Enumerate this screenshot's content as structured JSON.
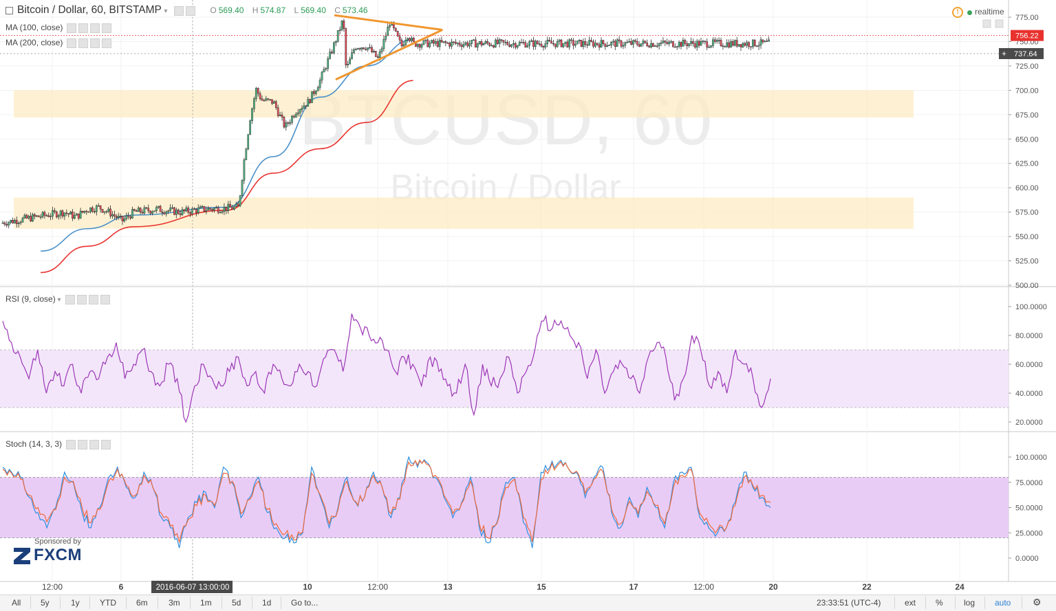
{
  "header": {
    "title": "Bitcoin / Dollar, 60, BITSTAMP",
    "ohlc": [
      {
        "label": "O",
        "value": "569.40"
      },
      {
        "label": "H",
        "value": "574.87"
      },
      {
        "label": "L",
        "value": "569.40"
      },
      {
        "label": "C",
        "value": "573.46"
      }
    ],
    "ma100": "MA (100, close)",
    "ma200": "MA (200, close)",
    "realtime": "realtime"
  },
  "watermark": {
    "symbol": "BTCUSD, 60",
    "name": "Bitcoin / Dollar"
  },
  "indicators": {
    "rsi_title": "RSI (9, close)",
    "stoch_title": "Stoch (14, 3, 3)"
  },
  "sponsor": {
    "label": "Sponsored by",
    "brand": "FXCM"
  },
  "bottombar": {
    "ranges": [
      "All",
      "5y",
      "1y",
      "YTD",
      "6m",
      "3m",
      "1m",
      "5d",
      "1d",
      "Go to..."
    ],
    "clock": "23:33:51 (UTC-4)",
    "right": [
      "ext",
      "%",
      "log",
      "auto"
    ]
  },
  "colors": {
    "up": "#53b987",
    "down": "#eb4d5c",
    "ma100": "#4a90c8",
    "ma200": "#e8322e",
    "triangle": "#f0962e",
    "zone": "#fdecc4",
    "rsi": "#9b35b6",
    "stoch_k": "#2f8fe0",
    "stoch_d": "#ef6a3a"
  },
  "chart_data": [
    {
      "type": "candlestick",
      "title": "Bitcoin / Dollar, 60, BITSTAMP",
      "ylim": [
        500,
        785
      ],
      "yticks": [
        "500.00",
        "525.00",
        "550.00",
        "575.00",
        "600.00",
        "625.00",
        "650.00",
        "675.00",
        "700.00",
        "725.00",
        "750.00",
        "775.00"
      ],
      "price_labels": [
        "756.22",
        "737.64"
      ],
      "xticks": [
        "12:00",
        "6",
        "2016-06-07 13:00:00",
        "10",
        "12:00",
        "13",
        "15",
        "17",
        "12:00",
        "20",
        "22",
        "24"
      ],
      "price_path": [
        [
          "06-04 12:00",
          564
        ],
        [
          "06-05",
          575
        ],
        [
          "06-05 12:00",
          570
        ],
        [
          "06-06",
          578
        ],
        [
          "06-06 12:00",
          580
        ],
        [
          "06-07",
          574
        ],
        [
          "06-07 12:00",
          566
        ],
        [
          "06-08",
          575
        ],
        [
          "06-09",
          578
        ],
        [
          "06-10",
          575
        ],
        [
          "06-11",
          578
        ],
        [
          "06-12",
          579
        ],
        [
          "06-12 12:00",
          580
        ],
        [
          "06-12 18:00",
          630
        ],
        [
          "06-13",
          672
        ],
        [
          "06-13 06:00",
          701
        ],
        [
          "06-13 12:00",
          690
        ],
        [
          "06-14",
          688
        ],
        [
          "06-14 12:00",
          662
        ],
        [
          "06-15",
          680
        ],
        [
          "06-15 12:00",
          688
        ],
        [
          "06-16",
          710
        ],
        [
          "06-16 12:00",
          740
        ],
        [
          "06-17",
          773
        ],
        [
          "06-17 03:00",
          720
        ],
        [
          "06-17 12:00",
          745
        ],
        [
          "06-18",
          745
        ],
        [
          "06-18 12:00",
          732
        ],
        [
          "06-19",
          770
        ],
        [
          "06-19 12:00",
          745
        ],
        [
          "06-19 18:00",
          758
        ],
        [
          "06-20",
          748
        ]
      ],
      "ma100": [
        [
          "06-04",
          535
        ],
        [
          "06-06",
          558
        ],
        [
          "06-08",
          572
        ],
        [
          "06-12",
          580
        ],
        [
          "06-14",
          632
        ],
        [
          "06-16",
          693
        ],
        [
          "06-18",
          725
        ],
        [
          "06-20",
          752
        ]
      ],
      "ma200": [
        [
          "06-04",
          513
        ],
        [
          "06-06",
          540
        ],
        [
          "06-08",
          560
        ],
        [
          "06-12",
          577
        ],
        [
          "06-14",
          615
        ],
        [
          "06-16",
          640
        ],
        [
          "06-18",
          667
        ],
        [
          "06-20",
          710
        ]
      ],
      "zones": [
        {
          "from": 558,
          "to": 590
        },
        {
          "from": 672,
          "to": 700
        }
      ],
      "triangle": {
        "upper": [
          [
            "06-17",
            777
          ],
          [
            "06-20 09:00",
            762
          ]
        ],
        "lower": [
          [
            "06-16 09:00",
            711
          ],
          [
            "06-20 09:00",
            762
          ]
        ]
      }
    },
    {
      "type": "line",
      "title": "RSI (9, close)",
      "ylim": [
        10,
        105
      ],
      "yticks": [
        "20.0000",
        "40.0000",
        "60.0000",
        "80.0000",
        "100.0000"
      ],
      "bands": [
        30,
        70
      ],
      "values": [
        90,
        75,
        65,
        50,
        70,
        40,
        55,
        45,
        60,
        40,
        55,
        50,
        65,
        75,
        50,
        60,
        70,
        55,
        45,
        60,
        50,
        20,
        45,
        60,
        50,
        45,
        55,
        65,
        45,
        55,
        40,
        60,
        50,
        45,
        60,
        55,
        45,
        65,
        70,
        55,
        95,
        85,
        80,
        75,
        70,
        55,
        65,
        60,
        45,
        65,
        55,
        45,
        40,
        60,
        25,
        60,
        45,
        50,
        65,
        40,
        55,
        70,
        90,
        85,
        90,
        80,
        75,
        50,
        70,
        40,
        55,
        60,
        50,
        40,
        65,
        75,
        65,
        35,
        50,
        80,
        70,
        45,
        55,
        40,
        70,
        60,
        50,
        30,
        50
      ]
    },
    {
      "type": "line",
      "title": "Stoch (14, 3, 3)",
      "ylim": [
        -12,
        108
      ],
      "yticks": [
        "0.0000",
        "25.0000",
        "50.0000",
        "75.0000",
        "100.0000"
      ],
      "bands": [
        20,
        80
      ],
      "k": [
        90,
        85,
        80,
        60,
        45,
        30,
        50,
        85,
        75,
        45,
        30,
        50,
        80,
        90,
        70,
        60,
        85,
        70,
        40,
        30,
        10,
        40,
        55,
        65,
        50,
        90,
        75,
        40,
        60,
        80,
        45,
        30,
        20,
        15,
        25,
        90,
        60,
        30,
        50,
        80,
        55,
        60,
        85,
        70,
        40,
        60,
        100,
        90,
        95,
        80,
        60,
        40,
        55,
        80,
        30,
        15,
        35,
        75,
        80,
        35,
        10,
        85,
        90,
        95,
        90,
        85,
        60,
        80,
        90,
        45,
        30,
        60,
        40,
        70,
        50,
        30,
        75,
        85,
        90,
        40,
        30,
        25,
        30,
        55,
        85,
        70,
        60,
        50
      ],
      "d": [
        88,
        84,
        78,
        62,
        50,
        36,
        48,
        80,
        76,
        50,
        35,
        48,
        76,
        88,
        72,
        62,
        82,
        70,
        44,
        32,
        16,
        38,
        52,
        62,
        52,
        84,
        76,
        44,
        58,
        76,
        48,
        34,
        24,
        18,
        26,
        84,
        62,
        34,
        48,
        76,
        56,
        60,
        82,
        70,
        44,
        58,
        95,
        92,
        93,
        82,
        62,
        44,
        54,
        76,
        34,
        20,
        34,
        70,
        78,
        40,
        16,
        78,
        88,
        93,
        90,
        86,
        64,
        78,
        86,
        48,
        34,
        56,
        44,
        66,
        52,
        34,
        70,
        82,
        88,
        44,
        34,
        28,
        30,
        52,
        80,
        72,
        62,
        55
      ]
    }
  ]
}
